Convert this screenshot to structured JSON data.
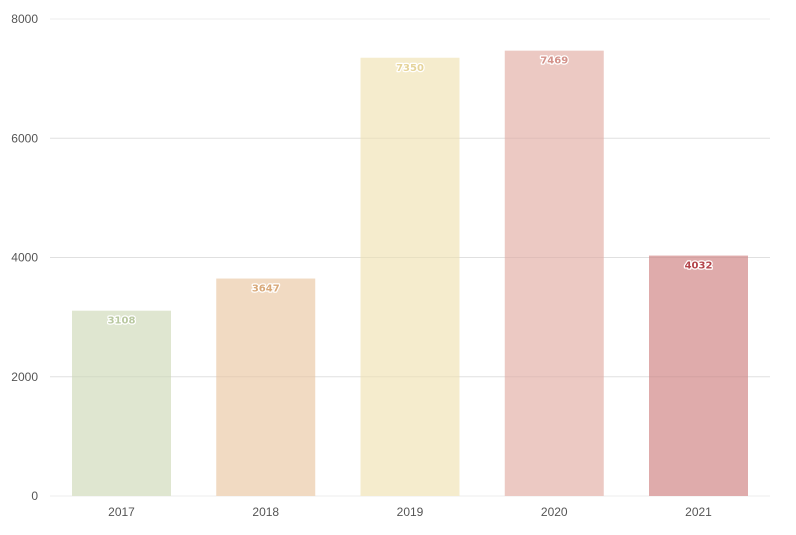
{
  "chart_data": {
    "type": "bar",
    "title": "",
    "xlabel": "",
    "ylabel": "",
    "categories": [
      "2017",
      "2018",
      "2019",
      "2020",
      "2021"
    ],
    "values": [
      3108,
      3647,
      7350,
      7469,
      4032
    ],
    "data_labels": [
      "3108",
      "3647",
      "7350",
      "7469",
      "4032"
    ],
    "ylim": [
      0,
      8000
    ],
    "yticks": [
      "0",
      "2000",
      "4000",
      "6000",
      "8000"
    ],
    "grid": true,
    "legend": "none",
    "bar_colors": [
      "#dfe6d0",
      "#f1dac2",
      "#f5eccd",
      "#ecc9c3",
      "#dfabab"
    ],
    "label_colors": [
      "#b9c8a0",
      "#d8a878",
      "#e6d49a",
      "#d39189",
      "#b3444a"
    ]
  }
}
